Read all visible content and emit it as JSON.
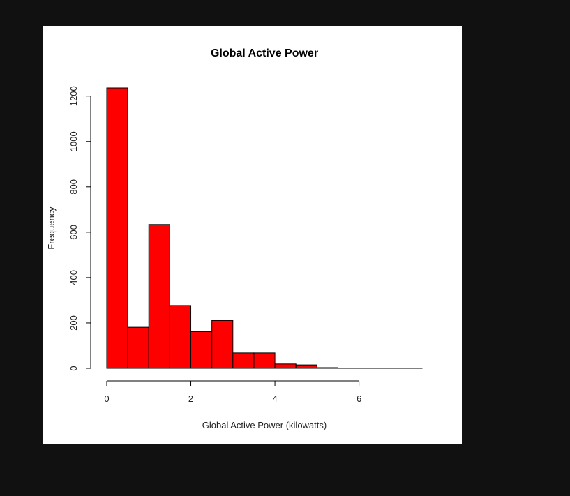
{
  "chart_data": {
    "type": "bar",
    "title": "Global Active Power",
    "xlabel": "Global Active Power (kilowatts)",
    "ylabel": "Frequency",
    "bar_color": "#ff0000",
    "bar_border_color": "#000000",
    "background_color": "#ffffff",
    "bins": [
      {
        "start": 0.0,
        "end": 0.5,
        "count": 1236
      },
      {
        "start": 0.5,
        "end": 1.0,
        "count": 181
      },
      {
        "start": 1.0,
        "end": 1.5,
        "count": 634
      },
      {
        "start": 1.5,
        "end": 2.0,
        "count": 277
      },
      {
        "start": 2.0,
        "end": 2.5,
        "count": 162
      },
      {
        "start": 2.5,
        "end": 3.0,
        "count": 211
      },
      {
        "start": 3.0,
        "end": 3.5,
        "count": 68
      },
      {
        "start": 3.5,
        "end": 4.0,
        "count": 68
      },
      {
        "start": 4.0,
        "end": 4.5,
        "count": 19
      },
      {
        "start": 4.5,
        "end": 5.0,
        "count": 15
      },
      {
        "start": 5.0,
        "end": 5.5,
        "count": 3
      },
      {
        "start": 5.5,
        "end": 6.0,
        "count": 1
      },
      {
        "start": 6.0,
        "end": 6.5,
        "count": 1
      },
      {
        "start": 6.5,
        "end": 7.0,
        "count": 1
      },
      {
        "start": 7.0,
        "end": 7.5,
        "count": 1
      }
    ],
    "xlim": [
      0,
      7.5
    ],
    "ylim": [
      0,
      1236
    ],
    "x_ticks": [
      0,
      2,
      4,
      6
    ],
    "x_tick_labels": [
      "0",
      "2",
      "4",
      "6"
    ],
    "y_ticks": [
      0,
      200,
      400,
      600,
      800,
      1000,
      1200
    ],
    "y_tick_labels": [
      "0",
      "200",
      "400",
      "600",
      "800",
      "1000",
      "1200"
    ],
    "grid": false,
    "legend": "none"
  }
}
